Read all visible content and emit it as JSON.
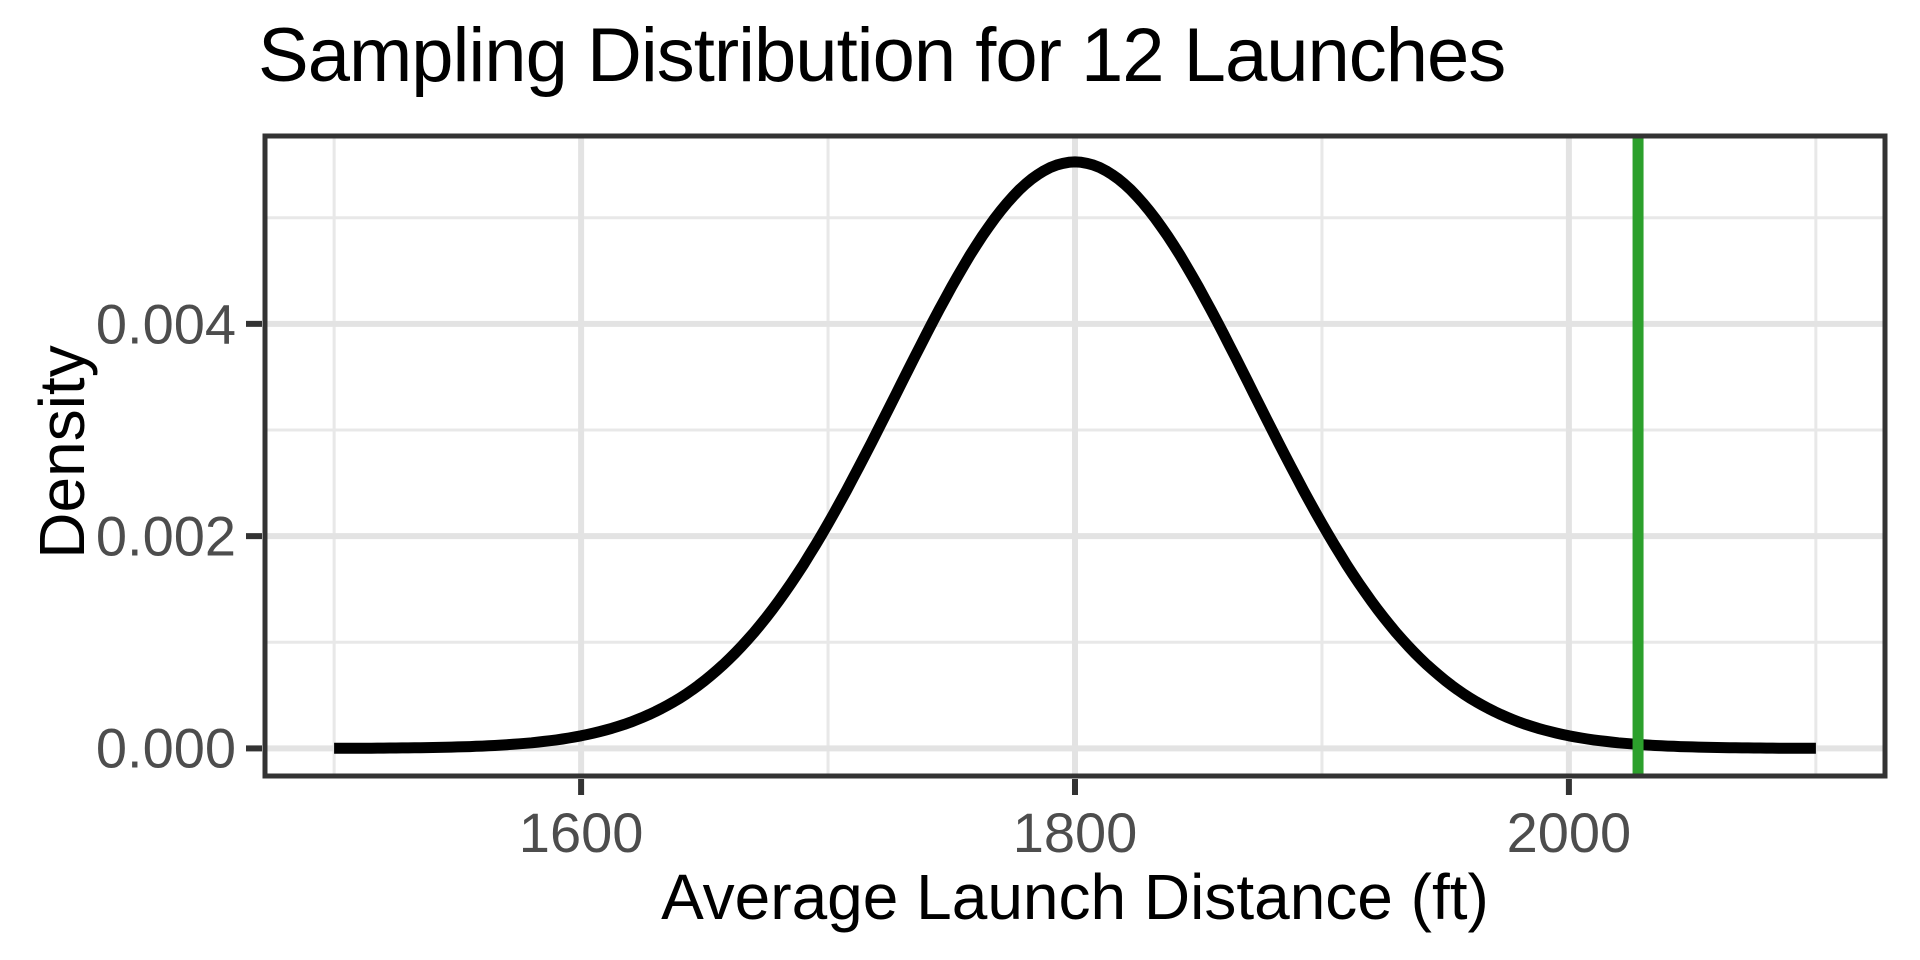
{
  "chart_data": {
    "type": "line",
    "title": "Sampling Distribution for 12 Launches",
    "xlabel": "Average Launch Distance (ft)",
    "ylabel": "Density",
    "xlim": [
      1472,
      2128
    ],
    "ylim": [
      -0.00026,
      0.00577
    ],
    "grid": "major+minor",
    "legend": false,
    "x_ticks": {
      "values": [
        1600,
        1800,
        2000
      ],
      "labels": [
        "1600",
        "1800",
        "2000"
      ],
      "minor": [
        1500,
        1700,
        1900,
        2100
      ]
    },
    "y_ticks": {
      "values": [
        0,
        0.002,
        0.004
      ],
      "labels": [
        "0.000",
        "0.002",
        "0.004"
      ],
      "minor": [
        0.001,
        0.003,
        0.005
      ]
    },
    "series": [
      {
        "name": "sampling-distribution-density",
        "kind": "normal-density-curve",
        "sample_size": 12,
        "mean": 1800,
        "sd": 72.2,
        "x_range": [
          1500,
          2100
        ],
        "peak_density": 0.00553,
        "color": "#000000",
        "points": [
          [
            1500,
            1e-06
          ],
          [
            1525,
            3.9e-06
          ],
          [
            1550,
            1.37e-05
          ],
          [
            1575,
            4.28e-05
          ],
          [
            1600,
            0.0001187
          ],
          [
            1625,
            0.0002921
          ],
          [
            1650,
            0.0006373
          ],
          [
            1675,
            0.0012333
          ],
          [
            1700,
            0.0021166
          ],
          [
            1725,
            0.0032213
          ],
          [
            1750,
            0.0043482
          ],
          [
            1775,
            0.0052062
          ],
          [
            1800,
            0.0055277
          ],
          [
            1825,
            0.0052062
          ],
          [
            1850,
            0.0043482
          ],
          [
            1875,
            0.0032213
          ],
          [
            1900,
            0.0021166
          ],
          [
            1925,
            0.0012333
          ],
          [
            1950,
            0.0006373
          ],
          [
            1975,
            0.0002921
          ],
          [
            2000,
            0.0001187
          ],
          [
            2025,
            4.28e-05
          ],
          [
            2050,
            1.37e-05
          ],
          [
            2075,
            3.9e-06
          ],
          [
            2100,
            1e-06
          ]
        ]
      }
    ],
    "vline": {
      "x": 2028,
      "color": "#2CA02C"
    }
  },
  "style": {
    "background": "#FFFFFF",
    "curve_color": "#000000",
    "vline_color": "#2CA02C",
    "grid_major_color": "#E3E3E3",
    "grid_minor_color": "#E8E8E8",
    "panel_border_color": "#333333",
    "tick_mark_color": "#333333",
    "tick_label_color": "#4D4D4D"
  }
}
